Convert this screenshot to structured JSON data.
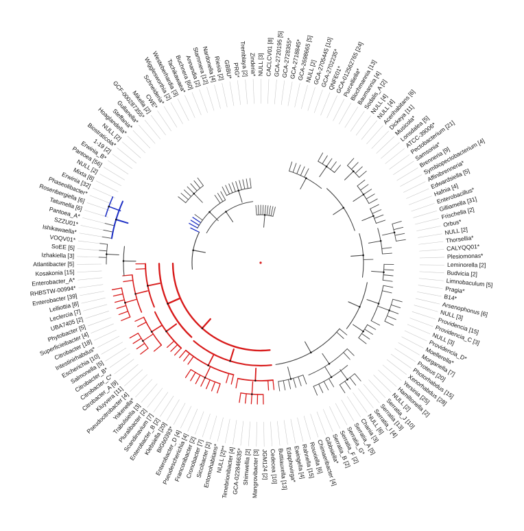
{
  "figure": {
    "type": "circular-phylogenetic-tree"
  },
  "colors": {
    "default": "#444444",
    "red": "#d81b1b",
    "blue": "#1d2fc4",
    "guide": "#c4c4c4",
    "node": "#111111"
  },
  "leaves": [
    {
      "label": "Atlantibacter [5]",
      "clade": "red"
    },
    {
      "label": "Kosakonia [15]",
      "clade": "red"
    },
    {
      "label": "Enterobacter_A*",
      "clade": "red"
    },
    {
      "label": "RHBSTW-00994*",
      "clade": "red"
    },
    {
      "label": "Enterobacter [39]",
      "clade": "red"
    },
    {
      "label": "Lelliottia [8]",
      "clade": "red"
    },
    {
      "label": "Leclercia [7]",
      "clade": "red"
    },
    {
      "label": "UBA7405 [2]",
      "clade": "red"
    },
    {
      "label": "Phytobacter [5]",
      "clade": "red"
    },
    {
      "label": "Superficieibacter [4]",
      "clade": "red"
    },
    {
      "label": "Citrobacter [18]",
      "clade": "red"
    },
    {
      "label": "Intestinirhabdus*",
      "clade": "red"
    },
    {
      "label": "Escherichia [10]",
      "clade": "red"
    },
    {
      "label": "Salmonella [5]",
      "clade": "red"
    },
    {
      "label": "Citrobacter_B*",
      "clade": "red"
    },
    {
      "label": "Citrobacter_C*",
      "clade": "red"
    },
    {
      "label": "Citrobacter_A [9]",
      "clade": "red"
    },
    {
      "label": "Kluyvera [11]",
      "clade": "red"
    },
    {
      "label": "Pseudocitrobacter [4]",
      "clade": "red"
    },
    {
      "label": "Yokenella*",
      "clade": "red"
    },
    {
      "label": "Trabulsiella [3]",
      "clade": "red"
    },
    {
      "label": "Pluralibacter [2]",
      "clade": "red"
    },
    {
      "label": "Scandinavium [7]",
      "clade": "red"
    },
    {
      "label": "Enterobacter_B [2]",
      "clade": "red"
    },
    {
      "label": "Klebsiella [20]",
      "clade": "red"
    },
    {
      "label": "BIGb0393*",
      "clade": "red"
    },
    {
      "label": "Enterobacter_D [4]",
      "clade": "red"
    },
    {
      "label": "Pseudescherichia [4]",
      "clade": "red"
    },
    {
      "label": "Franconibacter [2]",
      "clade": "red"
    },
    {
      "label": "Cronobacter [7]",
      "clade": "red"
    },
    {
      "label": "Siccibacter [2]",
      "clade": "red"
    },
    {
      "label": "Entomohabitans*",
      "clade": "red"
    },
    {
      "label": "NULL [2]**",
      "clade": "red"
    },
    {
      "label": "Tenebrionibacter [4]",
      "clade": "red"
    },
    {
      "label": "GCA-022846635*",
      "clade": "red"
    },
    {
      "label": "Shimwellia [2]",
      "clade": "red"
    },
    {
      "label": "Mangrovibacter [3]",
      "clade": "red"
    },
    {
      "label": "JGM124 [2]",
      "clade": "red"
    },
    {
      "label": "Cedecea [10]",
      "clade": "red"
    },
    {
      "label": "Buttiauxella [13]",
      "clade": "red"
    },
    {
      "label": "Edaphovirga*",
      "clade": "black"
    },
    {
      "label": "Ewingella [4]",
      "clade": "black"
    },
    {
      "label": "Rahnella [15]",
      "clade": "black"
    },
    {
      "label": "Rouxiella [6]",
      "clade": "black"
    },
    {
      "label": "Chimaeribacter [4]",
      "clade": "black"
    },
    {
      "label": "Gibbsiella*",
      "clade": "black"
    },
    {
      "label": "Serratia_B [2]",
      "clade": "black"
    },
    {
      "label": "Serratia_F [2]",
      "clade": "black"
    },
    {
      "label": "Serratia_G*",
      "clade": "black"
    },
    {
      "label": "Serratia_A [5]",
      "clade": "black"
    },
    {
      "label": "Chania [3]",
      "clade": "black"
    },
    {
      "label": "NULL [6]",
      "clade": "black"
    },
    {
      "label": "Serratia_I [4]",
      "clade": "black"
    },
    {
      "label": "Serratia [13]",
      "clade": "black"
    },
    {
      "label": "Serratia_J [10]",
      "clade": "black"
    },
    {
      "label": "NULL [2]",
      "clade": "black"
    },
    {
      "label": "Hamiltonella [2]",
      "clade": "black"
    },
    {
      "label": "Yersinia [25]",
      "clade": "black"
    },
    {
      "label": "Xenorhabdus [28]",
      "clade": "black"
    },
    {
      "label": "Photorhabdus [15]",
      "clade": "black"
    },
    {
      "label": "Proteus [20]",
      "clade": "black"
    },
    {
      "label": "Morganella [7]",
      "clade": "black"
    },
    {
      "label": "Moellerella*",
      "clade": "black"
    },
    {
      "label": "Providencia_D*",
      "clade": "black"
    },
    {
      "label": "NULL [3]",
      "clade": "black"
    },
    {
      "label": "Providencia_C [3]",
      "clade": "black"
    },
    {
      "label": "Providencia [15]",
      "clade": "black"
    },
    {
      "label": "NULL [3]",
      "clade": "black"
    },
    {
      "label": "Arsenophonus [6]",
      "clade": "black"
    },
    {
      "label": "B14*",
      "clade": "black"
    },
    {
      "label": "Pragia*",
      "clade": "black"
    },
    {
      "label": "Limnobaculum [5]",
      "clade": "black"
    },
    {
      "label": "Budvicia [2]",
      "clade": "black"
    },
    {
      "label": "Leminorella [2]",
      "clade": "black"
    },
    {
      "label": "Plesiomonas*",
      "clade": "black"
    },
    {
      "label": "CALYQQ01*",
      "clade": "black"
    },
    {
      "label": "Thorsellia*",
      "clade": "black"
    },
    {
      "label": "NULL [2]",
      "clade": "black"
    },
    {
      "label": "Orbus*",
      "clade": "black"
    },
    {
      "label": "Frischella [2]",
      "clade": "black"
    },
    {
      "label": "Gilliamella [31]",
      "clade": "black"
    },
    {
      "label": "Enterobacillus*",
      "clade": "black"
    },
    {
      "label": "Hafnia [4]",
      "clade": "black"
    },
    {
      "label": "Edwardsiella [5]",
      "clade": "black"
    },
    {
      "label": "Affinibrenneria*",
      "clade": "black"
    },
    {
      "label": "Symbiopectobacterium [4]",
      "clade": "black"
    },
    {
      "label": "Brenneria [9]",
      "clade": "black"
    },
    {
      "label": "Samsonia*",
      "clade": "black"
    },
    {
      "label": "Pectobacterium [21]",
      "clade": "black"
    },
    {
      "label": "ATCC-39006*",
      "clade": "black"
    },
    {
      "label": "Lonsdalea [5]",
      "clade": "black"
    },
    {
      "label": "Musicola*",
      "clade": "black"
    },
    {
      "label": "Dickeya [11]",
      "clade": "black"
    },
    {
      "label": "Acerihabitans [6]",
      "clade": "black"
    },
    {
      "label": "NULL [4]",
      "clade": "black"
    },
    {
      "label": "NULL [4]",
      "clade": "black"
    },
    {
      "label": "Sodalis_A [2]",
      "clade": "black"
    },
    {
      "label": "Baumannia [4]",
      "clade": "black"
    },
    {
      "label": "Blochmannia [13]",
      "clade": "black"
    },
    {
      "label": "Purcelliella*",
      "clade": "black"
    },
    {
      "label": "GCA-012562765 [24]",
      "clade": "black"
    },
    {
      "label": "QNFE01*",
      "clade": "black"
    },
    {
      "label": "GCA-2702235*",
      "clade": "black"
    },
    {
      "label": "GCA-2705445 [10]",
      "clade": "black"
    },
    {
      "label": "NULL [2]",
      "clade": "black"
    },
    {
      "label": "GCA-2698665 [5]",
      "clade": "black"
    },
    {
      "label": "GCA-2718845*",
      "clade": "black"
    },
    {
      "label": "GCA-2728355*",
      "clade": "black"
    },
    {
      "label": "GCA-2720195 [5]",
      "clade": "black"
    },
    {
      "label": "CACLCV01 [8]",
      "clade": "black"
    },
    {
      "label": "NULL [3]",
      "clade": "black"
    },
    {
      "label": "Zinderia*",
      "clade": "black"
    },
    {
      "label": "Tremblaya [2]",
      "clade": "black"
    },
    {
      "label": "PRG*",
      "clade": "black"
    },
    {
      "label": "GBBU*",
      "clade": "black"
    },
    {
      "label": "Riesia [2]",
      "clade": "black"
    },
    {
      "label": "Nardonella [4]",
      "clade": "black"
    },
    {
      "label": "Stammera [12]",
      "clade": "black"
    },
    {
      "label": "Annandia [2]",
      "clade": "black"
    },
    {
      "label": "Buchnera [60]",
      "clade": "black"
    },
    {
      "label": "Tachikawaea*",
      "clade": "black"
    },
    {
      "label": "Westeberhardia [3]",
      "clade": "black"
    },
    {
      "label": "Wigglesworthia [2]",
      "clade": "black"
    },
    {
      "label": "Schneideria*",
      "clade": "black"
    },
    {
      "label": "CWE*",
      "clade": "black"
    },
    {
      "label": "Mikella [2]",
      "clade": "black"
    },
    {
      "label": "GCF-000287355*",
      "clade": "black"
    },
    {
      "label": "Gullanella*",
      "clade": "black"
    },
    {
      "label": "Steffania*",
      "clade": "black"
    },
    {
      "label": "Hoaglandella*",
      "clade": "black"
    },
    {
      "label": "NULL [2]",
      "clade": "black"
    },
    {
      "label": "Biostraticola*",
      "clade": "black"
    },
    {
      "label": "1-19 [2]",
      "clade": "black"
    },
    {
      "label": "Erwinia_B*",
      "clade": "blue"
    },
    {
      "label": "Pantoea [56]",
      "clade": "blue"
    },
    {
      "label": "NULL [2]",
      "clade": "blue"
    },
    {
      "label": "Mixta [8]",
      "clade": "blue"
    },
    {
      "label": "Erwinia [32]",
      "clade": "blue"
    },
    {
      "label": "Phaseolibacter*",
      "clade": "blue"
    },
    {
      "label": "Rosenbergiella [6]",
      "clade": "blue"
    },
    {
      "label": "Tatumella [6]",
      "clade": "black"
    },
    {
      "label": "Pantoea_A*",
      "clade": "black"
    },
    {
      "label": "SZZU01*",
      "clade": "black"
    },
    {
      "label": "Ishikawaella*",
      "clade": "black"
    },
    {
      "label": "VOQV01*",
      "clade": "black"
    },
    {
      "label": "SoEE [5]",
      "clade": "black"
    },
    {
      "label": "Izhakiella [3]",
      "clade": "black"
    }
  ]
}
